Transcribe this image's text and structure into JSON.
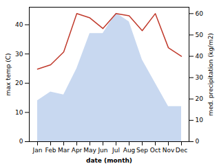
{
  "chart_data": {
    "type": "area",
    "categories": [
      "Jan",
      "Feb",
      "Mar",
      "Apr",
      "May",
      "Jun",
      "Jul",
      "Aug",
      "Sep",
      "Oct",
      "Nov",
      "Dec"
    ],
    "xlabel": "date (month)",
    "ylabel": "max temp (C)",
    "y2label": "med. precipitation (kg/m2)",
    "series": [
      {
        "type": "area",
        "color": "#c8d8f0",
        "values": [
          14,
          17,
          16,
          25,
          37,
          37,
          44,
          41,
          28,
          20,
          12,
          12
        ]
      },
      {
        "type": "line",
        "axis": "y2",
        "color": "#c0392b",
        "values": [
          34,
          36,
          42,
          60,
          58,
          53,
          60,
          59,
          52,
          60,
          44,
          40
        ]
      }
    ],
    "ylim": [
      0,
      46
    ],
    "yticks": [
      0,
      10,
      20,
      30,
      40
    ],
    "y2lim": [
      0,
      63
    ],
    "y2ticks": [
      0,
      10,
      20,
      30,
      40,
      50,
      60
    ],
    "grid": false
  }
}
